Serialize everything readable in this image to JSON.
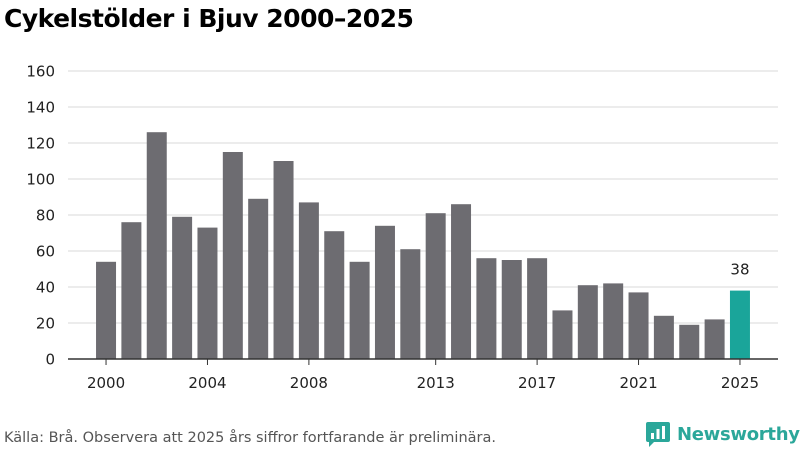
{
  "title": "Cykelstölder i Bjuv 2000–2025",
  "source": "Källa: Brå. Observera att 2025 års siffror fortfarande är preliminära.",
  "brand": "Newsworthy",
  "colors": {
    "bar": "#6d6c71",
    "highlight": "#1aa59a",
    "grid": "#d9d9d9",
    "axis": "#333333",
    "brand": "#2ba79a"
  },
  "chart_data": {
    "type": "bar",
    "title": "Cykelstölder i Bjuv 2000–2025",
    "xlabel": "",
    "ylabel": "",
    "ylim": [
      0,
      160
    ],
    "yticks": [
      0,
      20,
      40,
      60,
      80,
      100,
      120,
      140,
      160
    ],
    "xtick_labels": [
      "2000",
      "2004",
      "2008",
      "2013",
      "2017",
      "2021",
      "2025"
    ],
    "categories": [
      "2000",
      "2001",
      "2002",
      "2003",
      "2004",
      "2005",
      "2006",
      "2007",
      "2008",
      "2009",
      "2010",
      "2011",
      "2012",
      "2013",
      "2014",
      "2015",
      "2016",
      "2017",
      "2018",
      "2019",
      "2020",
      "2021",
      "2022",
      "2023",
      "2024",
      "2025"
    ],
    "values": [
      54,
      76,
      126,
      79,
      73,
      115,
      89,
      110,
      87,
      71,
      54,
      74,
      61,
      81,
      86,
      56,
      55,
      56,
      27,
      41,
      42,
      37,
      24,
      19,
      22,
      38
    ],
    "highlight_category": "2025",
    "annotations": [
      {
        "category": "2025",
        "text": "38"
      }
    ]
  }
}
